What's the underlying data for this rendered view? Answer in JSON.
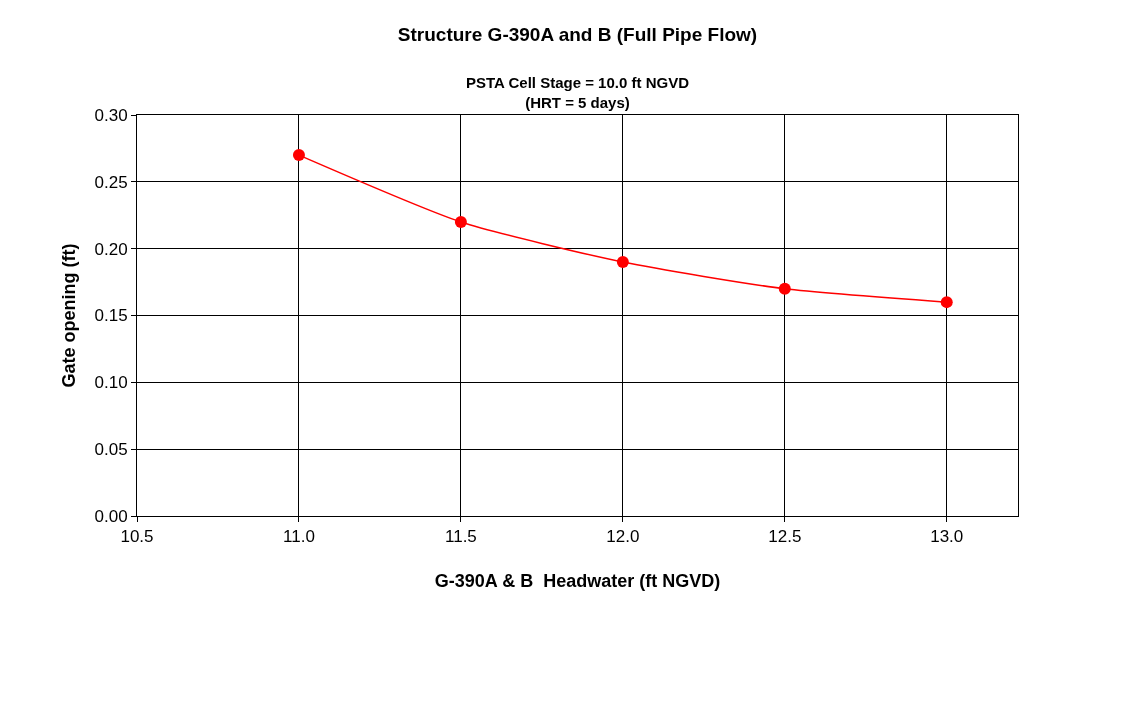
{
  "chart_data": {
    "type": "line",
    "title": "Structure G-390A and B (Full Pipe Flow)",
    "subtitle": "PSTA Cell Stage = 10.0 ft NGVD\n(HRT = 5 days)",
    "xlabel": "G-390A & B  Headwater (ft NGVD)",
    "ylabel": "Gate opening (ft)",
    "x": [
      11.0,
      11.5,
      12.0,
      12.5,
      13.0
    ],
    "series": [
      {
        "color": "#ff0000",
        "values": [
          0.27,
          0.22,
          0.19,
          0.17,
          0.16
        ]
      }
    ],
    "xlim": [
      10.5,
      13.22
    ],
    "xticks": [
      {
        "value": 10.5,
        "label": "10.5"
      },
      {
        "value": 11.0,
        "label": "11.0"
      },
      {
        "value": 11.5,
        "label": "11.5"
      },
      {
        "value": 12.0,
        "label": "12.0"
      },
      {
        "value": 12.5,
        "label": "12.5"
      },
      {
        "value": 13.0,
        "label": "13.0"
      }
    ],
    "ylim": [
      0,
      0.3
    ],
    "yticks": [
      {
        "value": 0,
        "label": "0.00"
      },
      {
        "value": 0.05,
        "label": "0.05"
      },
      {
        "value": 0.1,
        "label": "0.10"
      },
      {
        "value": 0.15,
        "label": "0.15"
      },
      {
        "value": 0.2,
        "label": "0.20"
      },
      {
        "value": 0.25,
        "label": "0.25"
      },
      {
        "value": 0.3,
        "label": "0.30"
      }
    ],
    "grid": true,
    "marker": "circle",
    "line_style": "solid"
  }
}
